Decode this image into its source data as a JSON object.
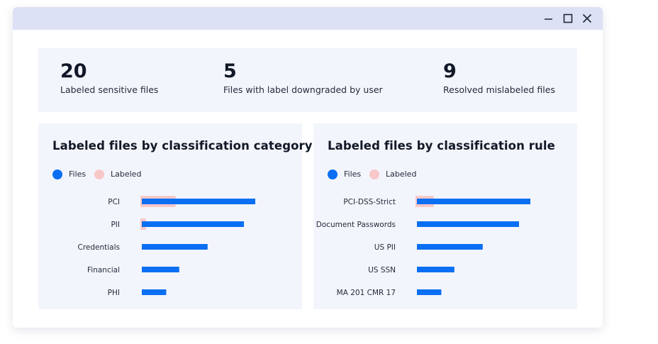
{
  "window": {
    "controls": [
      "minimize-icon",
      "maximize-icon",
      "close-icon"
    ]
  },
  "stats": [
    {
      "value": "20",
      "label": "Labeled sensitive files"
    },
    {
      "value": "5",
      "label": "Files with label downgraded by user"
    },
    {
      "value": "9",
      "label": "Resolved mislabeled files"
    }
  ],
  "colors": {
    "files": "#0a6ff2",
    "labeled": "#f8c8c8",
    "panel_bg": "#f3f5fc",
    "titlebar_bg": "#dde1f5"
  },
  "chart_data": [
    {
      "type": "bar",
      "orientation": "horizontal",
      "title": "Labeled files by classification category",
      "legend": [
        "Files",
        "Labeled"
      ],
      "legend_position": "top-left",
      "categories": [
        "PCI",
        "PII",
        "Credentials",
        "Financial",
        "PHI"
      ],
      "series": [
        {
          "name": "Files",
          "values": [
            20,
            18,
            11.6,
            6.6,
            4.3
          ]
        },
        {
          "name": "Labeled",
          "values": [
            6.2,
            1,
            0,
            0,
            0
          ]
        }
      ],
      "xlim": [
        0,
        20
      ]
    },
    {
      "type": "bar",
      "orientation": "horizontal",
      "title": "Labeled files by classification rule",
      "legend": [
        "Files",
        "Labeled"
      ],
      "legend_position": "top-left",
      "categories": [
        "PCI-DSS-Strict",
        "Document Passwords",
        "US PII",
        "US SSN",
        "MA 201 CMR 17"
      ],
      "series": [
        {
          "name": "Files",
          "values": [
            20,
            18,
            11.6,
            6.6,
            4.3
          ]
        },
        {
          "name": "Labeled",
          "values": [
            3.2,
            0,
            0,
            0,
            0
          ]
        }
      ],
      "xlim": [
        0,
        20
      ]
    }
  ]
}
